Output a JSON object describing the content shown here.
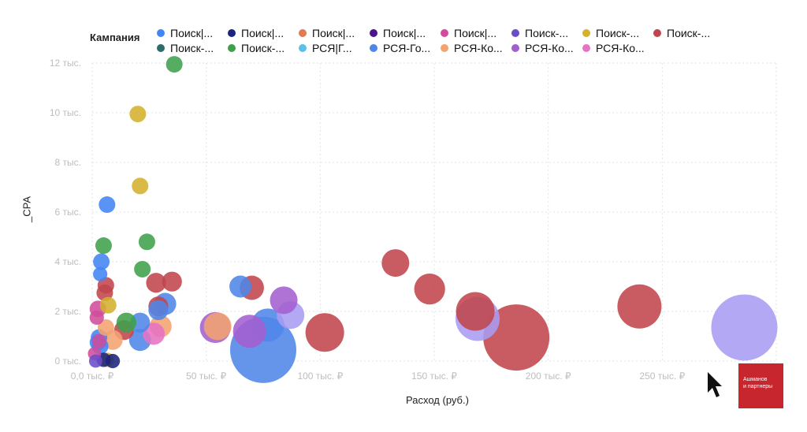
{
  "legend": {
    "title": "Кампания",
    "items": [
      {
        "label": "Поиск|...",
        "color": "#4285f4"
      },
      {
        "label": "Поиск|...",
        "color": "#1a237e"
      },
      {
        "label": "Поиск|...",
        "color": "#e07b54"
      },
      {
        "label": "Поиск|...",
        "color": "#4a148c"
      },
      {
        "label": "Поиск|...",
        "color": "#d04d9c"
      },
      {
        "label": "Поиск-...",
        "color": "#6d4cc9"
      },
      {
        "label": "Поиск-...",
        "color": "#d4b12e"
      },
      {
        "label": "Поиск-...",
        "color": "#c0454c"
      },
      {
        "label": "Поиск-...",
        "color": "#2e6b6b"
      },
      {
        "label": "Поиск-...",
        "color": "#3fa04a"
      },
      {
        "label": "РСЯ|Г...",
        "color": "#5bc0eb"
      },
      {
        "label": "РСЯ-Го...",
        "color": "#4f86e8"
      },
      {
        "label": "РСЯ-Ко...",
        "color": "#f2a36f"
      },
      {
        "label": "РСЯ-Ко...",
        "color": "#a45fcf"
      },
      {
        "label": "РСЯ-Ко...",
        "color": "#e673c4"
      }
    ]
  },
  "chart_data": {
    "type": "scatter",
    "xlabel": "Расход (руб.)",
    "ylabel": "_CPA",
    "xlim": [
      0,
      300000
    ],
    "ylim": [
      0,
      12000
    ],
    "x_ticks": [
      {
        "value": 0,
        "label": "0,0 тыс. ₽"
      },
      {
        "value": 50000,
        "label": "50 тыс. ₽"
      },
      {
        "value": 100000,
        "label": "100 тыс. ₽"
      },
      {
        "value": 150000,
        "label": "150 тыс. ₽"
      },
      {
        "value": 200000,
        "label": "200 тыс. ₽"
      },
      {
        "value": 250000,
        "label": "250 тыс. ₽"
      }
    ],
    "y_ticks": [
      {
        "value": 0,
        "label": "0 тыс."
      },
      {
        "value": 2000,
        "label": "2 тыс."
      },
      {
        "value": 4000,
        "label": "4 тыс."
      },
      {
        "value": 6000,
        "label": "6 тыс."
      },
      {
        "value": 8000,
        "label": "8 тыс."
      },
      {
        "value": 10000,
        "label": "10 тыс."
      },
      {
        "value": 12000,
        "label": "12 тыс."
      }
    ],
    "grid": true,
    "legend_position": "top",
    "points": [
      {
        "x": 240000,
        "y": 2200,
        "size": 4,
        "color": "#c0454c"
      },
      {
        "x": 186000,
        "y": 950,
        "size": 6,
        "color": "#c0454c"
      },
      {
        "x": 168000,
        "y": 2000,
        "size": 3.5,
        "color": "#c0454c"
      },
      {
        "x": 148000,
        "y": 2900,
        "size": 2.8,
        "color": "#c0454c"
      },
      {
        "x": 133000,
        "y": 3950,
        "size": 2.5,
        "color": "#c0454c"
      },
      {
        "x": 102000,
        "y": 1150,
        "size": 3.5,
        "color": "#c0454c"
      },
      {
        "x": 70000,
        "y": 2950,
        "size": 2.2,
        "color": "#c0454c"
      },
      {
        "x": 35000,
        "y": 3200,
        "size": 1.8,
        "color": "#c0454c"
      },
      {
        "x": 28000,
        "y": 3150,
        "size": 1.8,
        "color": "#c0454c"
      },
      {
        "x": 29000,
        "y": 2200,
        "size": 1.8,
        "color": "#c0454c"
      },
      {
        "x": 14000,
        "y": 1250,
        "size": 1.8,
        "color": "#c0454c"
      },
      {
        "x": 6000,
        "y": 3050,
        "size": 1.5,
        "color": "#c0454c"
      },
      {
        "x": 5500,
        "y": 2750,
        "size": 1.5,
        "color": "#c0454c"
      },
      {
        "x": 286000,
        "y": 1350,
        "size": 6,
        "color": "#a99cf2"
      },
      {
        "x": 169000,
        "y": 1700,
        "size": 4,
        "color": "#a99cf2"
      },
      {
        "x": 87000,
        "y": 1850,
        "size": 2.5,
        "color": "#a99cf2"
      },
      {
        "x": 75000,
        "y": 450,
        "size": 6,
        "color": "#4f86e8"
      },
      {
        "x": 77000,
        "y": 1450,
        "size": 3,
        "color": "#4f86e8"
      },
      {
        "x": 65000,
        "y": 3000,
        "size": 2,
        "color": "#4f86e8"
      },
      {
        "x": 32000,
        "y": 2300,
        "size": 2,
        "color": "#4f86e8"
      },
      {
        "x": 29000,
        "y": 2050,
        "size": 1.8,
        "color": "#4f86e8"
      },
      {
        "x": 21000,
        "y": 1550,
        "size": 1.8,
        "color": "#4f86e8"
      },
      {
        "x": 21000,
        "y": 850,
        "size": 2,
        "color": "#4f86e8"
      },
      {
        "x": 6500,
        "y": 6300,
        "size": 1.5,
        "color": "#4285f4"
      },
      {
        "x": 4000,
        "y": 4000,
        "size": 1.5,
        "color": "#4285f4"
      },
      {
        "x": 3500,
        "y": 3500,
        "size": 1.3,
        "color": "#4285f4"
      },
      {
        "x": 3000,
        "y": 950,
        "size": 1.5,
        "color": "#4285f4"
      },
      {
        "x": 3500,
        "y": 600,
        "size": 1.5,
        "color": "#4285f4"
      },
      {
        "x": 2500,
        "y": 750,
        "size": 1.5,
        "color": "#4285f4"
      },
      {
        "x": 84000,
        "y": 2450,
        "size": 2.5,
        "color": "#a45fcf"
      },
      {
        "x": 69000,
        "y": 1200,
        "size": 3,
        "color": "#a45fcf"
      },
      {
        "x": 54000,
        "y": 1350,
        "size": 2.8,
        "color": "#a45fcf"
      },
      {
        "x": 55000,
        "y": 1400,
        "size": 2.5,
        "color": "#f2a36f"
      },
      {
        "x": 30000,
        "y": 1400,
        "size": 2,
        "color": "#f2a36f"
      },
      {
        "x": 9000,
        "y": 850,
        "size": 1.8,
        "color": "#f2a36f"
      },
      {
        "x": 6000,
        "y": 1350,
        "size": 1.5,
        "color": "#f2a36f"
      },
      {
        "x": 27000,
        "y": 1100,
        "size": 2,
        "color": "#e673c4"
      },
      {
        "x": 2500,
        "y": 2100,
        "size": 1.5,
        "color": "#d04d9c"
      },
      {
        "x": 2000,
        "y": 1750,
        "size": 1.3,
        "color": "#d04d9c"
      },
      {
        "x": 3000,
        "y": 800,
        "size": 1.3,
        "color": "#d04d9c"
      },
      {
        "x": 36000,
        "y": 11950,
        "size": 1.5,
        "color": "#3fa04a"
      },
      {
        "x": 24000,
        "y": 4800,
        "size": 1.5,
        "color": "#3fa04a"
      },
      {
        "x": 22000,
        "y": 3700,
        "size": 1.5,
        "color": "#3fa04a"
      },
      {
        "x": 15000,
        "y": 1550,
        "size": 1.8,
        "color": "#3fa04a"
      },
      {
        "x": 5000,
        "y": 4650,
        "size": 1.5,
        "color": "#3fa04a"
      },
      {
        "x": 20000,
        "y": 9950,
        "size": 1.5,
        "color": "#d4b12e"
      },
      {
        "x": 21000,
        "y": 7050,
        "size": 1.5,
        "color": "#d4b12e"
      },
      {
        "x": 7000,
        "y": 2250,
        "size": 1.5,
        "color": "#d4b12e"
      },
      {
        "x": 6500,
        "y": 50,
        "size": 1.3,
        "color": "#d4b12e"
      },
      {
        "x": 9000,
        "y": 0,
        "size": 1.3,
        "color": "#1a237e"
      },
      {
        "x": 5000,
        "y": 50,
        "size": 1.3,
        "color": "#1a237e"
      },
      {
        "x": 1000,
        "y": 300,
        "size": 1.2,
        "color": "#d04d9c"
      },
      {
        "x": 1500,
        "y": 0,
        "size": 1.2,
        "color": "#6d4cc9"
      }
    ]
  },
  "brand": {
    "line1": "Ашманов",
    "line2": "и партнеры"
  }
}
